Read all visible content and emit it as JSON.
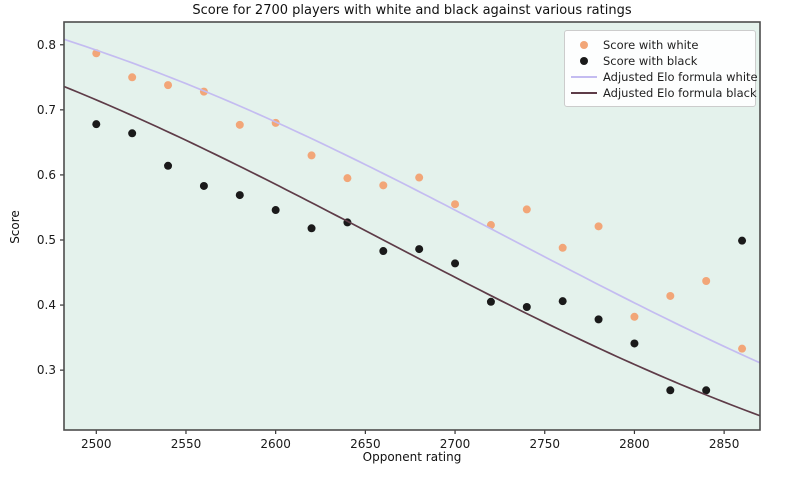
{
  "chart_data": {
    "type": "scatter",
    "title": "Score for 2700 players with white and black against various ratings",
    "xlabel": "Opponent rating",
    "ylabel": "Score",
    "xlim": [
      2482,
      2870
    ],
    "ylim": [
      0.208,
      0.835
    ],
    "x_ticks": [
      2500,
      2550,
      2600,
      2650,
      2700,
      2750,
      2800,
      2850
    ],
    "y_ticks": [
      0.3,
      0.4,
      0.5,
      0.6,
      0.7,
      0.8
    ],
    "grid": false,
    "legend_position": "upper right",
    "x": [
      2500,
      2520,
      2540,
      2560,
      2580,
      2600,
      2620,
      2640,
      2660,
      2680,
      2700,
      2720,
      2740,
      2760,
      2780,
      2800,
      2820,
      2840,
      2860
    ],
    "series": [
      {
        "name": "Score with white",
        "type": "scatter",
        "color": "#f2a678",
        "values": [
          0.787,
          0.75,
          0.738,
          0.728,
          0.677,
          0.68,
          0.63,
          0.595,
          0.584,
          0.596,
          0.555,
          0.523,
          0.547,
          0.488,
          0.521,
          0.382,
          0.414,
          0.437,
          0.333
        ]
      },
      {
        "name": "Score with black",
        "type": "scatter",
        "color": "#1a1a1a",
        "values": [
          0.678,
          0.664,
          0.614,
          0.583,
          0.569,
          0.546,
          0.518,
          0.527,
          0.483,
          0.486,
          0.464,
          0.405,
          0.397,
          0.406,
          0.378,
          0.341,
          0.269,
          0.269,
          0.499
        ]
      },
      {
        "name": "Adjusted Elo formula white",
        "type": "line",
        "color": "#c4bcf1",
        "formula": {
          "kind": "elo_expected_score",
          "adjusted_elo": 2732,
          "divisor": 400
        }
      },
      {
        "name": "Adjusted Elo formula black",
        "type": "line",
        "color": "#5e3c48",
        "formula": {
          "kind": "elo_expected_score",
          "adjusted_elo": 2660,
          "divisor": 400
        }
      }
    ],
    "colors": {
      "plot_background": "#e4f2ec",
      "spine": "#4d4d4d",
      "tick": "#333333",
      "legend_border": "#cccccc"
    }
  }
}
